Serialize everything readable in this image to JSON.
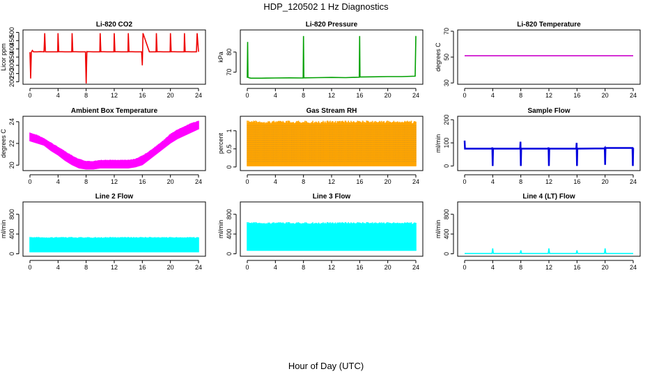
{
  "figure": {
    "title": "HDP_120502  1 Hz Diagnostics",
    "xlabel": "Hour of Day (UTC)"
  },
  "chart_data": [
    {
      "type": "line",
      "title": "Li-820 CO2",
      "ylabel": "Licor ppm",
      "color": "#ee0000",
      "xlim": [
        0,
        24
      ],
      "ylim": [
        185,
        515
      ],
      "xticks": [
        0,
        4,
        8,
        12,
        16,
        20,
        24
      ],
      "yticks": [
        200,
        250,
        300,
        350,
        400,
        450,
        500
      ],
      "series": [
        {
          "x": [
            0.0,
            0.1,
            0.2,
            0.35,
            0.5,
            1.0,
            1.5,
            2.0,
            2.1,
            2.2,
            3.0,
            3.95,
            4.0,
            4.1,
            5.0,
            5.95,
            6.0,
            6.1,
            7.0,
            7.9,
            8.0,
            8.1,
            9.0,
            9.95,
            10.0,
            10.1,
            11.0,
            11.95,
            12.0,
            12.1,
            13.0,
            13.95,
            14.0,
            14.1,
            15.0,
            15.9,
            16.0,
            16.1,
            17.0,
            17.95,
            18.0,
            18.1,
            19.0,
            19.95,
            20.0,
            20.1,
            21.0,
            21.95,
            22.0,
            22.1,
            23.0,
            23.7,
            23.8,
            24.0
          ],
          "y": [
            380,
            220,
            380,
            390,
            382,
            382,
            383,
            382,
            495,
            382,
            382,
            382,
            495,
            383,
            382,
            382,
            495,
            383,
            382,
            382,
            190,
            383,
            382,
            382,
            495,
            383,
            382,
            382,
            495,
            383,
            382,
            382,
            495,
            383,
            382,
            382,
            300,
            495,
            382,
            382,
            495,
            383,
            382,
            382,
            495,
            383,
            382,
            382,
            495,
            383,
            382,
            382,
            495,
            382
          ]
        }
      ]
    },
    {
      "type": "line",
      "title": "Li-820 Pressure",
      "ylabel": "kPa",
      "color": "#00a000",
      "xlim": [
        0,
        24
      ],
      "ylim": [
        64,
        91
      ],
      "xticks": [
        0,
        4,
        8,
        12,
        16,
        20,
        24
      ],
      "yticks": [
        70,
        80
      ],
      "series": [
        {
          "x": [
            0.0,
            0.05,
            0.1,
            0.2,
            0.5,
            2.0,
            4.0,
            6.0,
            7.95,
            8.0,
            8.05,
            10.0,
            12.0,
            14.0,
            15.95,
            16.0,
            16.05,
            18.0,
            20.0,
            22.0,
            23.9,
            24.0
          ],
          "y": [
            67.2,
            85.0,
            67.5,
            67.3,
            67.0,
            67.0,
            67.1,
            67.2,
            67.1,
            88.0,
            67.2,
            67.3,
            67.4,
            67.3,
            67.5,
            88.0,
            67.6,
            67.7,
            67.8,
            67.8,
            68.0,
            88.0
          ]
        }
      ]
    },
    {
      "type": "line",
      "title": "Li-820 Temperature",
      "ylabel": "degrees C",
      "color": "#cc00cc",
      "xlim": [
        0,
        24
      ],
      "ylim": [
        29,
        71
      ],
      "xticks": [
        0,
        4,
        8,
        12,
        16,
        20,
        24
      ],
      "yticks": [
        30,
        50,
        70
      ],
      "series": [
        {
          "x": [
            0,
            24
          ],
          "y": [
            51,
            51
          ]
        }
      ]
    },
    {
      "type": "area",
      "title": "Ambient Box Temperature",
      "ylabel": "degrees C",
      "color": "#ff00ff",
      "xlim": [
        0,
        24
      ],
      "ylim": [
        19.5,
        24.5
      ],
      "xticks": [
        0,
        4,
        8,
        12,
        16,
        20,
        24
      ],
      "yticks": [
        20,
        22,
        24
      ],
      "series": [
        {
          "x": [
            0,
            1,
            2,
            3,
            4,
            5,
            6,
            7,
            8,
            9,
            10,
            11,
            12,
            13,
            14,
            15,
            16,
            17,
            18,
            19,
            20,
            21,
            22,
            23,
            24
          ],
          "y_low": [
            22.2,
            22.0,
            21.8,
            21.3,
            20.9,
            20.4,
            20.0,
            19.7,
            19.6,
            19.6,
            19.7,
            19.7,
            19.7,
            19.7,
            19.7,
            19.8,
            20.0,
            20.5,
            21.0,
            21.5,
            22.0,
            22.4,
            22.7,
            23.0,
            23.3
          ],
          "y_high": [
            23.0,
            22.8,
            22.5,
            22.1,
            21.7,
            21.3,
            20.9,
            20.6,
            20.4,
            20.4,
            20.5,
            20.5,
            20.5,
            20.5,
            20.5,
            20.6,
            20.9,
            21.3,
            21.8,
            22.3,
            22.9,
            23.3,
            23.6,
            23.9,
            24.1
          ]
        }
      ]
    },
    {
      "type": "area",
      "title": "Gas Stream RH",
      "ylabel": "percent",
      "color": "#ffa500",
      "color2": "#707070",
      "xlim": [
        0,
        24
      ],
      "ylim": [
        -0.1,
        1.4
      ],
      "xticks": [
        0,
        4,
        8,
        12,
        16,
        20,
        24
      ],
      "yticks": [
        0.0,
        0.5,
        1.0
      ],
      "series": [
        {
          "x": [
            0,
            24
          ],
          "y_low": [
            0.02,
            0.02
          ],
          "y_high": [
            1.28,
            1.28
          ]
        }
      ]
    },
    {
      "type": "line",
      "title": "Sample Flow",
      "ylabel": "ml/min",
      "color": "#0000dd",
      "xlim": [
        0,
        24
      ],
      "ylim": [
        -20,
        215
      ],
      "xticks": [
        0,
        4,
        8,
        12,
        16,
        20,
        24
      ],
      "yticks": [
        0,
        100,
        200
      ],
      "series": [
        {
          "x": [
            0.0,
            0.05,
            0.15,
            3.9,
            3.95,
            4.0,
            4.05,
            7.9,
            7.95,
            8.0,
            8.05,
            11.9,
            11.95,
            12.0,
            12.05,
            15.9,
            15.95,
            16.0,
            16.05,
            19.9,
            19.95,
            20.0,
            20.05,
            23.9,
            23.95,
            24.0
          ],
          "y": [
            110,
            75,
            75,
            75,
            80,
            0,
            75,
            75,
            105,
            0,
            75,
            75,
            80,
            0,
            75,
            75,
            100,
            0,
            75,
            76,
            78,
            5,
            78,
            78,
            0,
            78
          ]
        }
      ]
    },
    {
      "type": "area",
      "title": "Line 2 Flow",
      "ylabel": "ml/min",
      "color": "#00ffff",
      "xlim": [
        0,
        24
      ],
      "ylim": [
        -50,
        1050
      ],
      "xticks": [
        0,
        4,
        8,
        12,
        16,
        20,
        24
      ],
      "yticks": [
        0,
        400,
        800
      ],
      "series": [
        {
          "x": [
            0,
            24
          ],
          "y_low": [
            30,
            30
          ],
          "y_high": [
            340,
            340
          ]
        }
      ]
    },
    {
      "type": "area",
      "title": "Line 3 Flow",
      "ylabel": "ml/min",
      "color": "#00ffff",
      "xlim": [
        0,
        24
      ],
      "ylim": [
        -50,
        1050
      ],
      "xticks": [
        0,
        4,
        8,
        12,
        16,
        20,
        24
      ],
      "yticks": [
        0,
        400,
        800
      ],
      "series": [
        {
          "x": [
            0,
            24
          ],
          "y_low": [
            60,
            60
          ],
          "y_high": [
            640,
            640
          ]
        }
      ]
    },
    {
      "type": "line",
      "title": "Line 4 (LT) Flow",
      "ylabel": "ml/min",
      "color": "#00ffff",
      "xlim": [
        0,
        24
      ],
      "ylim": [
        -50,
        1050
      ],
      "xticks": [
        0,
        4,
        8,
        12,
        16,
        20,
        24
      ],
      "yticks": [
        0,
        400,
        800
      ],
      "series": [
        {
          "x": [
            0.0,
            3.9,
            4.0,
            4.1,
            7.9,
            8.0,
            8.1,
            11.9,
            12.0,
            12.1,
            15.9,
            16.0,
            16.1,
            19.9,
            20.0,
            20.1,
            24.0
          ],
          "y": [
            5,
            5,
            110,
            5,
            5,
            70,
            5,
            5,
            110,
            5,
            5,
            70,
            5,
            5,
            110,
            5,
            5
          ]
        }
      ]
    }
  ]
}
